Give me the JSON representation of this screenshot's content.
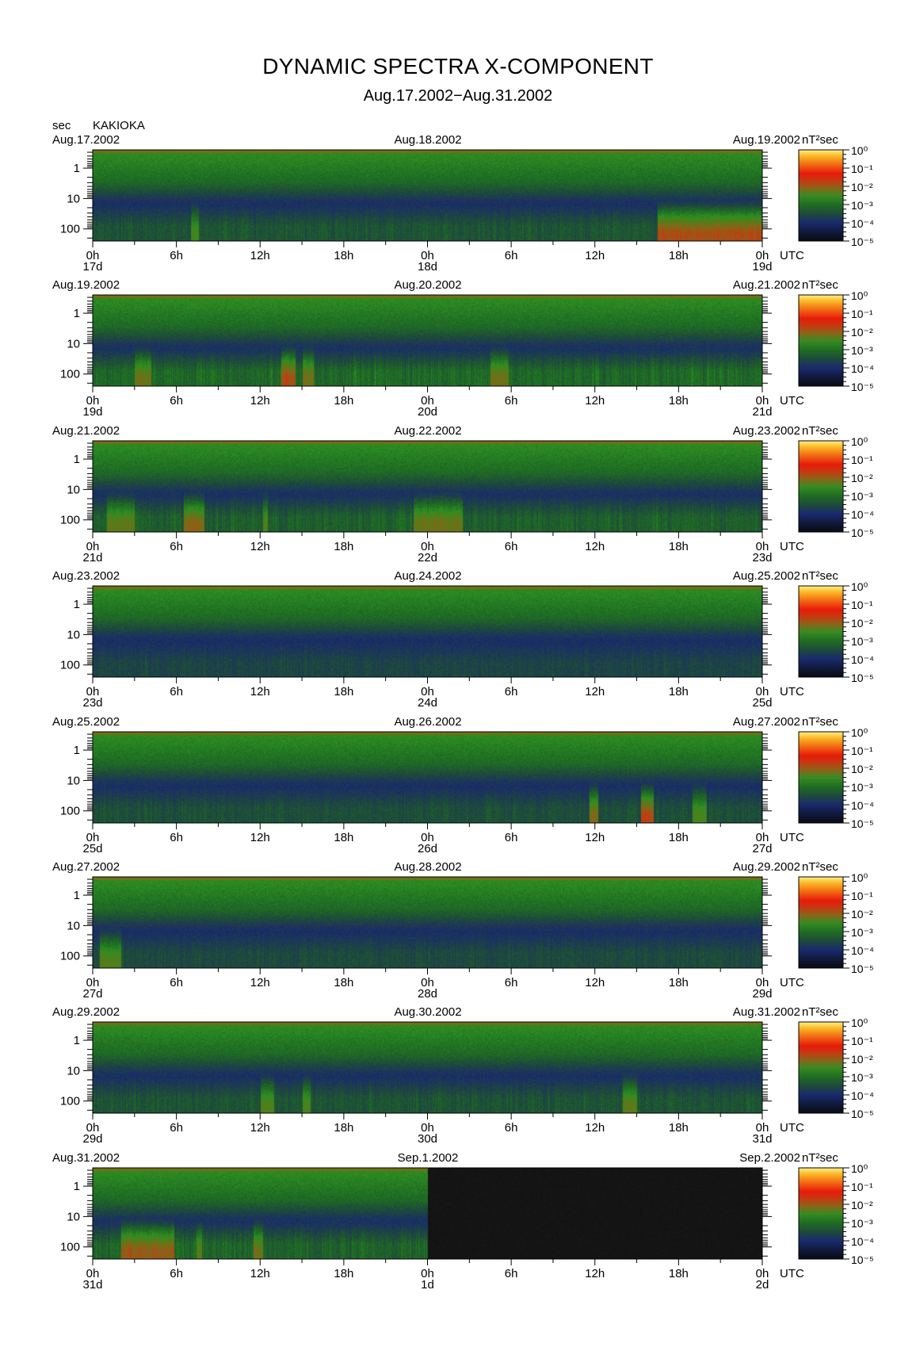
{
  "title": "DYNAMIC SPECTRA X-COMPONENT",
  "date_range": "Aug.17.2002−Aug.31.2002",
  "unit_label": "sec",
  "station": "KAKIOKA",
  "colorbar_label": "nT²sec",
  "time_zone_label": "UTC",
  "colors": {
    "palette": [
      "#0a0a14",
      "#101a3c",
      "#1a2a6e",
      "#1e4a3a",
      "#1e6e22",
      "#2f8f22",
      "#5a7a18",
      "#8a6418",
      "#c43a12",
      "#e81a0a",
      "#f26a14",
      "#fbb624",
      "#fff08a"
    ],
    "missing_data": "#141414"
  },
  "chart_data": [
    {
      "type": "heatmap",
      "panel": 1,
      "day_labels": [
        "Aug.17.2002",
        "Aug.18.2002",
        "Aug.19.2002"
      ],
      "x_tick_labels": [
        "0h",
        "6h",
        "12h",
        "18h",
        "0h",
        "6h",
        "12h",
        "18h",
        "0h"
      ],
      "x_day_labels": [
        "17d",
        "18d",
        "19d"
      ],
      "x_range_hours": [
        0,
        48
      ],
      "y_tick_labels": [
        "1",
        "10",
        "100"
      ],
      "y_range_sec": [
        0.25,
        250
      ],
      "y_scale": "log",
      "y_axis_inverted": true,
      "colorbar_tick_labels": [
        "10⁰",
        "10⁻¹",
        "10⁻²",
        "10⁻³",
        "10⁻⁴",
        "10⁻⁵"
      ],
      "colorbar_range": [
        1e-05,
        1
      ],
      "missing_data_hours": [],
      "storm_bursts": [
        {
          "hour_start": 40.5,
          "hour_end": 48,
          "intensity": 0.85
        },
        {
          "hour_start": 7,
          "hour_end": 7.6,
          "intensity": 0.4
        }
      ],
      "activity": 0.45
    },
    {
      "type": "heatmap",
      "panel": 2,
      "day_labels": [
        "Aug.19.2002",
        "Aug.20.2002",
        "Aug.21.2002"
      ],
      "x_tick_labels": [
        "0h",
        "6h",
        "12h",
        "18h",
        "0h",
        "6h",
        "12h",
        "18h",
        "0h"
      ],
      "x_day_labels": [
        "19d",
        "20d",
        "21d"
      ],
      "x_range_hours": [
        0,
        48
      ],
      "y_tick_labels": [
        "1",
        "10",
        "100"
      ],
      "y_range_sec": [
        0.25,
        250
      ],
      "y_scale": "log",
      "y_axis_inverted": true,
      "colorbar_tick_labels": [
        "10⁰",
        "10⁻¹",
        "10⁻²",
        "10⁻³",
        "10⁻⁴",
        "10⁻⁵"
      ],
      "colorbar_range": [
        1e-05,
        1
      ],
      "missing_data_hours": [],
      "storm_bursts": [
        {
          "hour_start": 13.5,
          "hour_end": 14.5,
          "intensity": 0.7
        },
        {
          "hour_start": 3,
          "hour_end": 4.2,
          "intensity": 0.5
        },
        {
          "hour_start": 15,
          "hour_end": 15.8,
          "intensity": 0.5
        },
        {
          "hour_start": 28.5,
          "hour_end": 29.8,
          "intensity": 0.5
        }
      ],
      "activity": 0.65
    },
    {
      "type": "heatmap",
      "panel": 3,
      "day_labels": [
        "Aug.21.2002",
        "Aug.22.2002",
        "Aug.23.2002"
      ],
      "x_tick_labels": [
        "0h",
        "6h",
        "12h",
        "18h",
        "0h",
        "6h",
        "12h",
        "18h",
        "0h"
      ],
      "x_day_labels": [
        "21d",
        "22d",
        "23d"
      ],
      "x_range_hours": [
        0,
        48
      ],
      "y_tick_labels": [
        "1",
        "10",
        "100"
      ],
      "y_range_sec": [
        0.25,
        250
      ],
      "y_scale": "log",
      "y_axis_inverted": true,
      "colorbar_tick_labels": [
        "10⁰",
        "10⁻¹",
        "10⁻²",
        "10⁻³",
        "10⁻⁴",
        "10⁻⁵"
      ],
      "colorbar_range": [
        1e-05,
        1
      ],
      "missing_data_hours": [],
      "storm_bursts": [
        {
          "hour_start": 6.5,
          "hour_end": 8,
          "intensity": 0.65
        },
        {
          "hour_start": 1,
          "hour_end": 3,
          "intensity": 0.5
        },
        {
          "hour_start": 23,
          "hour_end": 26.5,
          "intensity": 0.55
        },
        {
          "hour_start": 12.2,
          "hour_end": 12.5,
          "intensity": 0.4
        }
      ],
      "activity": 0.55
    },
    {
      "type": "heatmap",
      "panel": 4,
      "day_labels": [
        "Aug.23.2002",
        "Aug.24.2002",
        "Aug.25.2002"
      ],
      "x_tick_labels": [
        "0h",
        "6h",
        "12h",
        "18h",
        "0h",
        "6h",
        "12h",
        "18h",
        "0h"
      ],
      "x_day_labels": [
        "23d",
        "24d",
        "25d"
      ],
      "x_range_hours": [
        0,
        48
      ],
      "y_tick_labels": [
        "1",
        "10",
        "100"
      ],
      "y_range_sec": [
        0.25,
        250
      ],
      "y_scale": "log",
      "y_axis_inverted": true,
      "colorbar_tick_labels": [
        "10⁰",
        "10⁻¹",
        "10⁻²",
        "10⁻³",
        "10⁻⁴",
        "10⁻⁵"
      ],
      "colorbar_range": [
        1e-05,
        1
      ],
      "missing_data_hours": [],
      "storm_bursts": [],
      "activity": 0.3
    },
    {
      "type": "heatmap",
      "panel": 5,
      "day_labels": [
        "Aug.25.2002",
        "Aug.26.2002",
        "Aug.27.2002"
      ],
      "x_tick_labels": [
        "0h",
        "6h",
        "12h",
        "18h",
        "0h",
        "6h",
        "12h",
        "18h",
        "0h"
      ],
      "x_day_labels": [
        "25d",
        "26d",
        "27d"
      ],
      "x_range_hours": [
        0,
        48
      ],
      "y_tick_labels": [
        "1",
        "10",
        "100"
      ],
      "y_range_sec": [
        0.25,
        250
      ],
      "y_scale": "log",
      "y_axis_inverted": true,
      "colorbar_tick_labels": [
        "10⁰",
        "10⁻¹",
        "10⁻²",
        "10⁻³",
        "10⁻⁴",
        "10⁻⁵"
      ],
      "colorbar_range": [
        1e-05,
        1
      ],
      "missing_data_hours": [],
      "storm_bursts": [
        {
          "hour_start": 39.3,
          "hour_end": 40.2,
          "intensity": 0.9
        },
        {
          "hour_start": 35.6,
          "hour_end": 36.2,
          "intensity": 0.7
        },
        {
          "hour_start": 43,
          "hour_end": 44,
          "intensity": 0.5
        }
      ],
      "activity": 0.4
    },
    {
      "type": "heatmap",
      "panel": 6,
      "day_labels": [
        "Aug.27.2002",
        "Aug.28.2002",
        "Aug.29.2002"
      ],
      "x_tick_labels": [
        "0h",
        "6h",
        "12h",
        "18h",
        "0h",
        "6h",
        "12h",
        "18h",
        "0h"
      ],
      "x_day_labels": [
        "27d",
        "28d",
        "29d"
      ],
      "x_range_hours": [
        0,
        48
      ],
      "y_tick_labels": [
        "1",
        "10",
        "100"
      ],
      "y_range_sec": [
        0.25,
        250
      ],
      "y_scale": "log",
      "y_axis_inverted": true,
      "colorbar_tick_labels": [
        "10⁰",
        "10⁻¹",
        "10⁻²",
        "10⁻³",
        "10⁻⁴",
        "10⁻⁵"
      ],
      "colorbar_range": [
        1e-05,
        1
      ],
      "missing_data_hours": [],
      "storm_bursts": [
        {
          "hour_start": 0.5,
          "hour_end": 2,
          "intensity": 0.55
        }
      ],
      "activity": 0.35
    },
    {
      "type": "heatmap",
      "panel": 7,
      "day_labels": [
        "Aug.29.2002",
        "Aug.30.2002",
        "Aug.31.2002"
      ],
      "x_tick_labels": [
        "0h",
        "6h",
        "12h",
        "18h",
        "0h",
        "6h",
        "12h",
        "18h",
        "0h"
      ],
      "x_day_labels": [
        "29d",
        "30d",
        "31d"
      ],
      "x_range_hours": [
        0,
        48
      ],
      "y_tick_labels": [
        "1",
        "10",
        "100"
      ],
      "y_range_sec": [
        0.25,
        250
      ],
      "y_scale": "log",
      "y_axis_inverted": true,
      "colorbar_tick_labels": [
        "10⁰",
        "10⁻¹",
        "10⁻²",
        "10⁻³",
        "10⁻⁴",
        "10⁻⁵"
      ],
      "colorbar_range": [
        1e-05,
        1
      ],
      "missing_data_hours": [],
      "storm_bursts": [
        {
          "hour_start": 12,
          "hour_end": 13,
          "intensity": 0.5
        },
        {
          "hour_start": 38,
          "hour_end": 39,
          "intensity": 0.55
        },
        {
          "hour_start": 15,
          "hour_end": 15.6,
          "intensity": 0.45
        }
      ],
      "activity": 0.45
    },
    {
      "type": "heatmap",
      "panel": 8,
      "day_labels": [
        "Aug.31.2002",
        "Sep.1.2002",
        "Sep.2.2002"
      ],
      "x_tick_labels": [
        "0h",
        "6h",
        "12h",
        "18h",
        "0h",
        "6h",
        "12h",
        "18h",
        "0h"
      ],
      "x_day_labels": [
        "31d",
        "1d",
        "2d"
      ],
      "x_range_hours": [
        0,
        48
      ],
      "y_tick_labels": [
        "1",
        "10",
        "100"
      ],
      "y_range_sec": [
        0.25,
        250
      ],
      "y_scale": "log",
      "y_axis_inverted": true,
      "colorbar_tick_labels": [
        "10⁰",
        "10⁻¹",
        "10⁻²",
        "10⁻³",
        "10⁻⁴",
        "10⁻⁵"
      ],
      "colorbar_range": [
        1e-05,
        1
      ],
      "missing_data_hours": [
        24,
        48
      ],
      "storm_bursts": [
        {
          "hour_start": 2,
          "hour_end": 5.8,
          "intensity": 0.7
        },
        {
          "hour_start": 11.5,
          "hour_end": 12.2,
          "intensity": 0.55
        },
        {
          "hour_start": 7.4,
          "hour_end": 7.8,
          "intensity": 0.45
        }
      ],
      "activity": 0.6
    }
  ]
}
